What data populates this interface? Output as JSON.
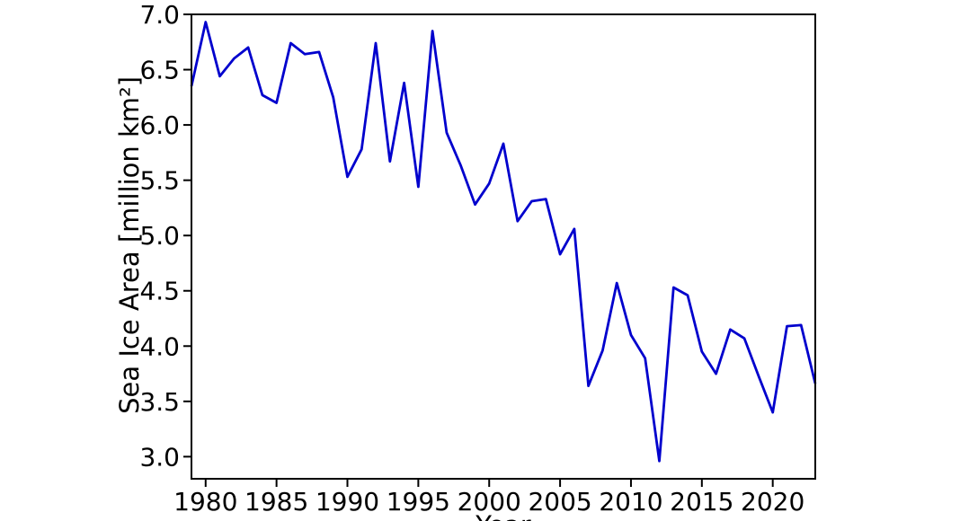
{
  "figure": {
    "background": "#ffffff",
    "axis_color": "#000000",
    "tick_label_color": "#000000"
  },
  "chart_data": {
    "type": "line",
    "title": "",
    "xlabel": "Year",
    "ylabel": "Sea Ice Area [million km²]",
    "grid": false,
    "legend": "none",
    "xlim": [
      1979,
      2023
    ],
    "ylim": [
      2.8,
      7.0
    ],
    "x_ticks": [
      1980,
      1985,
      1990,
      1995,
      2000,
      2005,
      2010,
      2015,
      2020
    ],
    "y_ticks": [
      3.0,
      3.5,
      4.0,
      4.5,
      5.0,
      5.5,
      6.0,
      6.5,
      7.0
    ],
    "x": [
      1979,
      1980,
      1981,
      1982,
      1983,
      1984,
      1985,
      1986,
      1987,
      1988,
      1989,
      1990,
      1991,
      1992,
      1993,
      1994,
      1995,
      1996,
      1997,
      1998,
      1999,
      2000,
      2001,
      2002,
      2003,
      2004,
      2005,
      2006,
      2007,
      2008,
      2009,
      2010,
      2011,
      2012,
      2013,
      2014,
      2015,
      2016,
      2017,
      2018,
      2019,
      2020,
      2021,
      2022,
      2023
    ],
    "series": [
      {
        "name": "Sea Ice Area",
        "color": "#0000cd",
        "values": [
          6.35,
          6.93,
          6.44,
          6.6,
          6.7,
          6.27,
          6.2,
          6.74,
          6.64,
          6.66,
          6.25,
          5.53,
          5.78,
          6.74,
          5.67,
          6.38,
          5.44,
          6.85,
          5.93,
          5.63,
          5.28,
          5.47,
          5.83,
          5.13,
          5.31,
          5.33,
          4.83,
          5.06,
          3.64,
          3.96,
          4.57,
          4.1,
          3.89,
          2.96,
          4.53,
          4.46,
          3.95,
          3.75,
          4.15,
          4.07,
          3.73,
          3.4,
          4.18,
          4.19,
          3.66
        ]
      }
    ]
  }
}
